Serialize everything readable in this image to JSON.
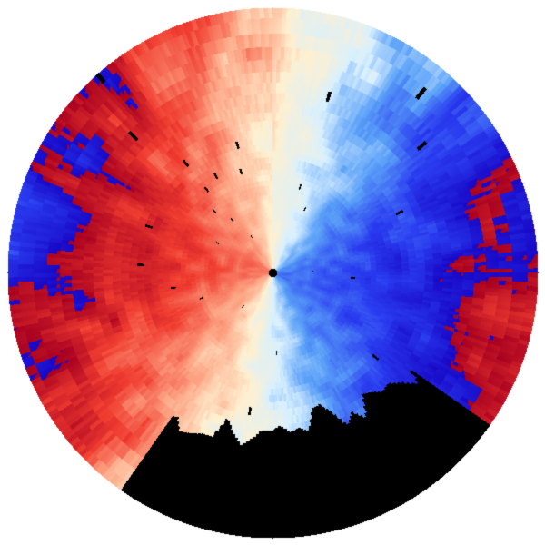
{
  "background_color": "#ffffff",
  "no_data_color": "#000000",
  "colormap": [
    "#1808c8",
    "#2a3cf0",
    "#5aa0f8",
    "#d8f0ff",
    "#fff0d0",
    "#fca080",
    "#f03c30",
    "#a80020"
  ],
  "velocity_limit": 1.0
}
